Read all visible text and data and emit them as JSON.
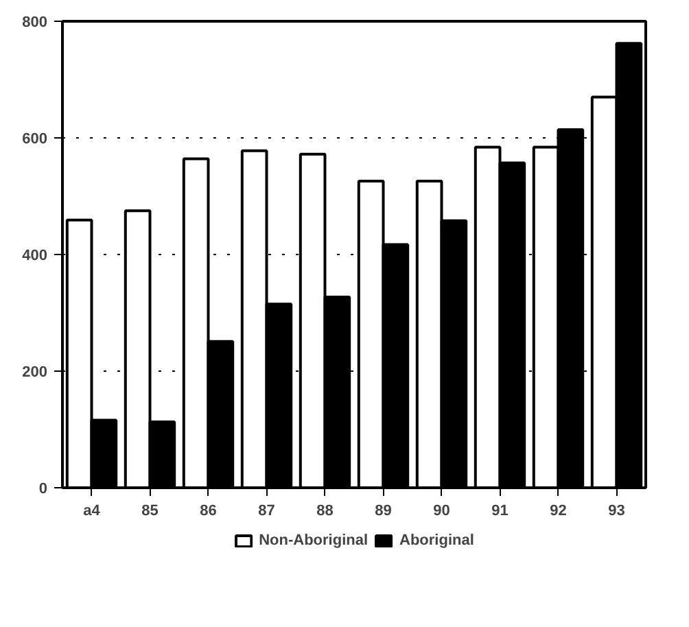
{
  "chart_data": {
    "type": "bar",
    "categories": [
      "a4",
      "85",
      "86",
      "87",
      "88",
      "89",
      "90",
      "91",
      "92",
      "93"
    ],
    "series": [
      {
        "name": "Non-Aboriginal",
        "color": "#ffffff",
        "values": [
          459,
          475,
          564,
          578,
          572,
          526,
          526,
          584,
          584,
          670
        ]
      },
      {
        "name": "Aboriginal",
        "color": "#000000",
        "values": [
          116,
          113,
          251,
          315,
          327,
          417,
          458,
          557,
          614,
          762
        ]
      }
    ],
    "ylim": [
      0,
      800
    ],
    "yticks": [
      0,
      200,
      400,
      600,
      800
    ],
    "grid": "y",
    "legend": "bottom"
  }
}
